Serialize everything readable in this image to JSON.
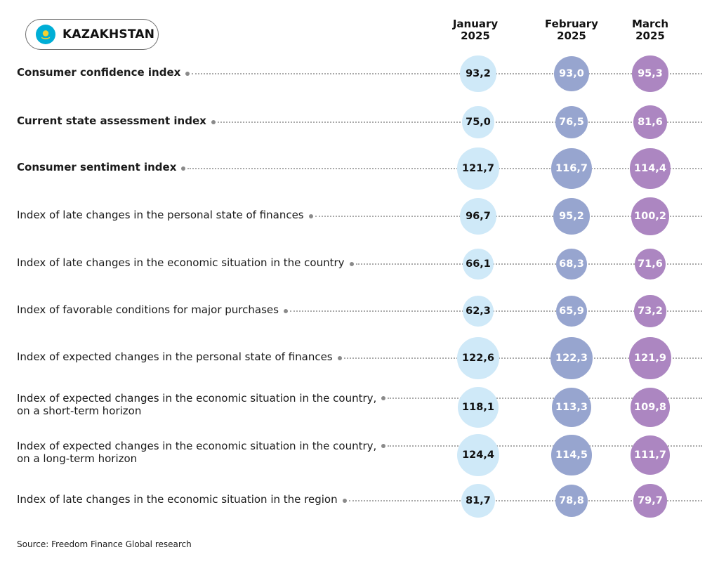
{
  "header": {
    "country": "KAZAKHSTAN",
    "flag_icon": "kazakhstan-flag-icon"
  },
  "colors": {
    "january": "#cfe9f8",
    "february": "#97a5cf",
    "march": "#ac86c1",
    "leader": "#a9a9a9",
    "flag_blue": "#00aed6",
    "flag_gold": "#f6d130"
  },
  "source": "Source: Freedom Finance Global research",
  "chart_data": {
    "type": "table",
    "columns": [
      {
        "key": "jan",
        "line1": "January",
        "line2": "2025"
      },
      {
        "key": "feb",
        "line1": "February",
        "line2": "2025"
      },
      {
        "key": "mar",
        "line1": "March",
        "line2": "2025"
      }
    ],
    "rows": [
      {
        "label": [
          "Consumer confidence index"
        ],
        "bold": true,
        "values": [
          "93,2",
          "93,0",
          "95,3"
        ]
      },
      {
        "label": [
          "Current state assessment index"
        ],
        "bold": true,
        "values": [
          "75,0",
          "76,5",
          "81,6"
        ]
      },
      {
        "label": [
          "Consumer sentiment index"
        ],
        "bold": true,
        "values": [
          "121,7",
          "116,7",
          "114,4"
        ]
      },
      {
        "label": [
          "Index of late changes in the personal state of finances"
        ],
        "bold": false,
        "values": [
          "96,7",
          "95,2",
          "100,2"
        ]
      },
      {
        "label": [
          "Index of late changes in the economic situation in the country"
        ],
        "bold": false,
        "values": [
          "66,1",
          "68,3",
          "71,6"
        ]
      },
      {
        "label": [
          "Index of favorable conditions for major purchases"
        ],
        "bold": false,
        "values": [
          "62,3",
          "65,9",
          "73,2"
        ]
      },
      {
        "label": [
          "Index of expected changes in the personal state of finances"
        ],
        "bold": false,
        "values": [
          "122,6",
          "122,3",
          "121,9"
        ]
      },
      {
        "label": [
          "Index of expected changes in the economic situation in the country,",
          "on a short-term horizon"
        ],
        "bold": false,
        "values": [
          "118,1",
          "113,3",
          "109,8"
        ]
      },
      {
        "label": [
          "Index of expected changes in the economic situation in the country,",
          "on a long-term horizon"
        ],
        "bold": false,
        "values": [
          "124,4",
          "114,5",
          "111,7"
        ]
      },
      {
        "label": [
          "Index of late changes in the economic situation in the region"
        ],
        "bold": false,
        "values": [
          "81,7",
          "78,8",
          "79,7"
        ]
      }
    ]
  }
}
